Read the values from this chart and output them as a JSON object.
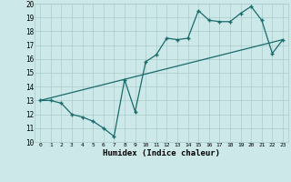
{
  "xlabel": "Humidex (Indice chaleur)",
  "bg_color": "#cce8e8",
  "grid_color": "#aacccc",
  "line_color": "#1a6b6b",
  "xlim": [
    -0.5,
    23.5
  ],
  "ylim": [
    10,
    20
  ],
  "xticks": [
    0,
    1,
    2,
    3,
    4,
    5,
    6,
    7,
    8,
    9,
    10,
    11,
    12,
    13,
    14,
    15,
    16,
    17,
    18,
    19,
    20,
    21,
    22,
    23
  ],
  "yticks": [
    10,
    11,
    12,
    13,
    14,
    15,
    16,
    17,
    18,
    19,
    20
  ],
  "zigzag_x": [
    0,
    1,
    2,
    3,
    4,
    5,
    6,
    7,
    8,
    9,
    10,
    11,
    12,
    13,
    14,
    15,
    16,
    17,
    18,
    19,
    20,
    21,
    22,
    23
  ],
  "zigzag_y": [
    13.0,
    13.0,
    12.8,
    12.0,
    11.8,
    11.5,
    11.0,
    10.4,
    14.5,
    12.2,
    15.8,
    16.3,
    17.5,
    17.4,
    17.5,
    19.5,
    18.8,
    18.7,
    18.7,
    19.3,
    19.8,
    18.8,
    16.4,
    17.4
  ],
  "trend_x": [
    0,
    23
  ],
  "trend_y": [
    13.0,
    17.4
  ]
}
